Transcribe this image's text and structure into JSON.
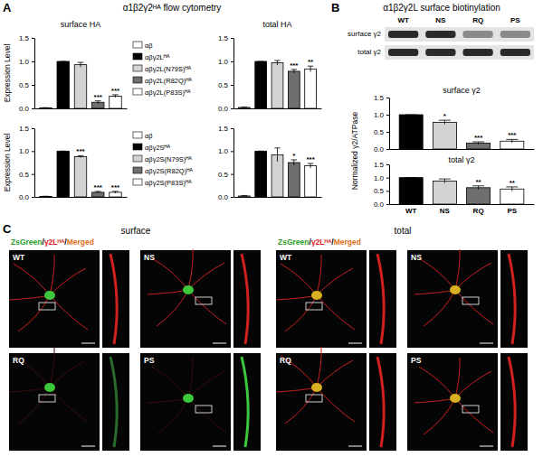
{
  "figure": {
    "panel_labels": [
      "A",
      "B",
      "C"
    ],
    "headings": [
      "α1β2γ2ᴴᴬ flow cytometry",
      "α1β2γ2L surface biotinylation"
    ],
    "blot": {
      "rows": [
        "surface γ2",
        "total γ2"
      ],
      "lanes": [
        "WT",
        "NS",
        "RQ",
        "PS"
      ]
    },
    "microscopy": {
      "sections": [
        {
          "title": "surface",
          "legend": [
            {
              "text": "ZsGreen",
              "color": "#2aa02a"
            },
            {
              "text": "/",
              "color": "#000000"
            },
            {
              "text": "γ2Lᴴᴬ",
              "color": "#e02020"
            },
            {
              "text": "/",
              "color": "#000000"
            },
            {
              "text": "Merged",
              "color": "#e07020"
            }
          ],
          "panels": [
            "WT",
            "NS",
            "RQ",
            "PS"
          ]
        },
        {
          "title": "total",
          "legend": [
            {
              "text": "ZsGreen",
              "color": "#2aa02a"
            },
            {
              "text": "/",
              "color": "#000000"
            },
            {
              "text": "γ2Lᴴᴬ",
              "color": "#e02020"
            },
            {
              "text": "/",
              "color": "#000000"
            },
            {
              "text": "Merged",
              "color": "#e07020"
            }
          ],
          "panels": [
            "WT",
            "NS",
            "RQ",
            "PS"
          ]
        }
      ]
    }
  },
  "chart_data": [
    {
      "type": "bar",
      "title": "surface HA",
      "y_label": "Expression Level",
      "categories": [
        "αβ",
        "αβγ2Lᴴᴬ",
        "αβγ2L(N79S)ᴴᴬ",
        "αβγ2L(R82Q)ᴴᴬ",
        "αβγ2L(P83S)ᴴᴬ"
      ],
      "values": [
        0.01,
        1.0,
        0.93,
        0.13,
        0.26
      ],
      "errors": [
        0.005,
        0,
        0.05,
        0.03,
        0.03
      ],
      "significance": [
        null,
        null,
        null,
        "***",
        "***"
      ],
      "colors": [
        "#ffffff",
        "#000000",
        "#d3d3d3",
        "#6e6e6e",
        "#ffffff"
      ],
      "ylim": [
        0,
        1.5
      ],
      "yticks": [
        {
          "value": 0,
          "label": "0.0"
        },
        {
          "value": 0.5,
          "label": "0.5"
        },
        {
          "value": 1,
          "label": "1.0"
        },
        {
          "value": 1.5,
          "label": "1.5"
        }
      ],
      "tick_labels": "y",
      "legend": "right"
    },
    {
      "type": "bar",
      "title": "total HA",
      "categories": [
        "αβ",
        "αβγ2Lᴴᴬ",
        "αβγ2L(N79S)ᴴᴬ",
        "αβγ2L(R82Q)ᴴᴬ",
        "αβγ2L(P83S)ᴴᴬ"
      ],
      "values": [
        0.02,
        1.0,
        0.97,
        0.79,
        0.84
      ],
      "errors": [
        0.01,
        0,
        0.05,
        0.04,
        0.06
      ],
      "significance": [
        null,
        null,
        null,
        "***",
        "**"
      ],
      "colors": [
        "#ffffff",
        "#000000",
        "#d3d3d3",
        "#6e6e6e",
        "#ffffff"
      ],
      "ylim": [
        0,
        1.5
      ],
      "yticks": [
        {
          "value": 0,
          "label": "0.0"
        },
        {
          "value": 0.5,
          "label": "0.5"
        },
        {
          "value": 1,
          "label": "1.0"
        },
        {
          "value": 1.5,
          "label": "1.5"
        }
      ],
      "tick_labels": "y"
    },
    {
      "type": "bar",
      "y_label": "Expression Level",
      "categories": [
        "αβ",
        "αβγ2Sᴴᴬ",
        "αβγ2S(N79S)ᴴᴬ",
        "αβγ2S(R82Q)ᴴᴬ",
        "αβγ2S(P83S)ᴴᴬ"
      ],
      "values": [
        0.01,
        1.0,
        0.88,
        0.1,
        0.1
      ],
      "errors": [
        0.005,
        0,
        0.02,
        0.02,
        0.02
      ],
      "significance": [
        null,
        null,
        "***",
        "***",
        "***"
      ],
      "colors": [
        "#ffffff",
        "#000000",
        "#d3d3d3",
        "#6e6e6e",
        "#ffffff"
      ],
      "ylim": [
        0,
        1.5
      ],
      "yticks": [
        {
          "value": 0,
          "label": "0.0"
        },
        {
          "value": 0.5,
          "label": "0.5"
        },
        {
          "value": 1,
          "label": "1.0"
        },
        {
          "value": 1.5,
          "label": "1.5"
        }
      ],
      "tick_labels": "y",
      "legend": "right"
    },
    {
      "type": "bar",
      "categories": [
        "αβ",
        "αβγ2Sᴴᴬ",
        "αβγ2S(N79S)ᴴᴬ",
        "αβγ2S(R82Q)ᴴᴬ",
        "αβγ2S(P83S)ᴴᴬ"
      ],
      "values": [
        0.02,
        1.0,
        0.92,
        0.75,
        0.68
      ],
      "errors": [
        0.01,
        0,
        0.15,
        0.06,
        0.05
      ],
      "significance": [
        null,
        null,
        null,
        "*",
        "***"
      ],
      "colors": [
        "#ffffff",
        "#000000",
        "#d3d3d3",
        "#6e6e6e",
        "#ffffff"
      ],
      "ylim": [
        0,
        1.5
      ],
      "yticks": [
        {
          "value": 0,
          "label": "0.0"
        },
        {
          "value": 0.5,
          "label": "0.5"
        },
        {
          "value": 1,
          "label": "1.0"
        },
        {
          "value": 1.5,
          "label": "1.5"
        }
      ],
      "tick_labels": "y"
    },
    {
      "type": "bar",
      "title": "surface γ2",
      "y_label": "Normalized γ2/ATPase",
      "categories": [
        "WT",
        "NS",
        "RQ",
        "PS"
      ],
      "values": [
        1.0,
        0.78,
        0.17,
        0.23
      ],
      "errors": [
        0,
        0.06,
        0.04,
        0.05
      ],
      "significance": [
        null,
        "*",
        "***",
        "***"
      ],
      "colors": [
        "#000000",
        "#d3d3d3",
        "#6e6e6e",
        "#ffffff"
      ],
      "ylim": [
        0,
        1.5
      ],
      "yticks": [
        {
          "value": 0,
          "label": "0.0"
        },
        {
          "value": 0.5,
          "label": "0.5"
        },
        {
          "value": 1,
          "label": "1.0"
        },
        {
          "value": 1.5,
          "label": "1.5"
        }
      ],
      "tick_labels": "y"
    },
    {
      "type": "bar",
      "title": "total γ2",
      "categories": [
        "WT",
        "NS",
        "RQ",
        "PS"
      ],
      "values": [
        1.0,
        0.87,
        0.62,
        0.57
      ],
      "errors": [
        0,
        0.08,
        0.07,
        0.08
      ],
      "significance": [
        null,
        null,
        "**",
        "**"
      ],
      "colors": [
        "#000000",
        "#d3d3d3",
        "#6e6e6e",
        "#ffffff"
      ],
      "ylim": [
        0,
        1.5
      ],
      "yticks": [
        {
          "value": 0,
          "label": "0.0"
        },
        {
          "value": 0.5,
          "label": "0.5"
        },
        {
          "value": 1,
          "label": "1.0"
        },
        {
          "value": 1.5,
          "label": "1.5"
        }
      ],
      "tick_labels": true
    }
  ]
}
